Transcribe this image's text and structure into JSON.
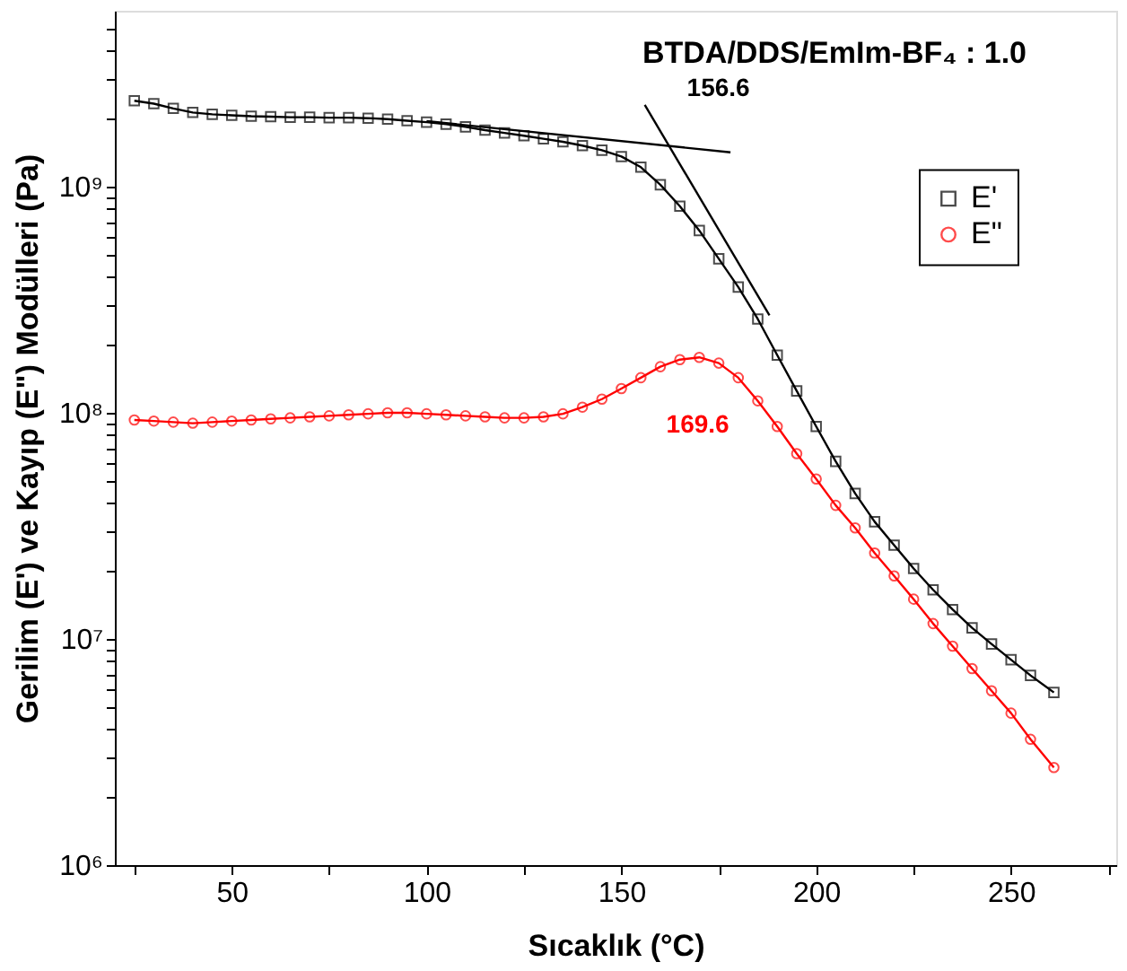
{
  "chart_data": {
    "type": "line",
    "xlabel": "Sıcaklık (°C)",
    "ylabel": "Gerilim (E') ve Kayıp (E\") Modülleri (Pa)",
    "annotations": [
      "BTDA/DDS/EmIm-BF₄ : 1.0",
      {
        "text": "156.6",
        "x": 162,
        "y": 1560000000
      },
      {
        "text": "169.6",
        "x": 169.6,
        "y": 176000000
      }
    ],
    "log": "y",
    "xlim": [
      20,
      277
    ],
    "ylim": [
      1000000,
      6000000000
    ],
    "xticks": [
      {
        "value": 25,
        "label": null
      },
      50,
      {
        "value": 75,
        "label": null
      },
      100,
      {
        "value": 125,
        "label": null
      },
      150,
      {
        "value": 175,
        "label": null
      },
      200,
      {
        "value": 225,
        "label": null
      },
      250,
      {
        "value": 275,
        "label": null
      }
    ],
    "yticks": [
      {
        "value": 1000000,
        "label": "10⁶"
      },
      {
        "value": 2000000,
        "label": null
      },
      {
        "value": 3000000,
        "label": null
      },
      {
        "value": 4000000,
        "label": null
      },
      {
        "value": 5000000,
        "label": null
      },
      {
        "value": 6000000,
        "label": null
      },
      {
        "value": 7000000,
        "label": null
      },
      {
        "value": 8000000,
        "label": null
      },
      {
        "value": 9000000,
        "label": null
      },
      {
        "value": 10000000,
        "label": "10⁷"
      },
      {
        "value": 20000000,
        "label": null
      },
      {
        "value": 30000000,
        "label": null
      },
      {
        "value": 40000000,
        "label": null
      },
      {
        "value": 50000000,
        "label": null
      },
      {
        "value": 60000000,
        "label": null
      },
      {
        "value": 70000000,
        "label": null
      },
      {
        "value": 80000000,
        "label": null
      },
      {
        "value": 90000000,
        "label": null
      },
      {
        "value": 100000000,
        "label": "10⁸"
      },
      {
        "value": 200000000,
        "label": null
      },
      {
        "value": 300000000,
        "label": null
      },
      {
        "value": 400000000,
        "label": null
      },
      {
        "value": 500000000,
        "label": null
      },
      {
        "value": 600000000,
        "label": null
      },
      {
        "value": 700000000,
        "label": null
      },
      {
        "value": 800000000,
        "label": null
      },
      {
        "value": 900000000,
        "label": null
      },
      {
        "value": 1000000000,
        "label": "10⁹"
      },
      {
        "value": 2000000000,
        "label": null
      },
      {
        "value": 3000000000,
        "label": null
      },
      {
        "value": 4000000000,
        "label": null
      },
      {
        "value": 5000000000,
        "label": null
      }
    ],
    "grid": false,
    "legend": "top right",
    "line_style": "solid",
    "series": [
      {
        "name": "E'",
        "color": "#000000",
        "marker": "square",
        "x": [
          25,
          30,
          35,
          40,
          45,
          50,
          55,
          60,
          65,
          70,
          75,
          80,
          85,
          90,
          95,
          100,
          105,
          110,
          115,
          120,
          125,
          130,
          135,
          140,
          145,
          150,
          155,
          160,
          165,
          170,
          175,
          180,
          185,
          190,
          195,
          200,
          205,
          210,
          215,
          220,
          225,
          230,
          235,
          240,
          245,
          250,
          255,
          261
        ],
        "values": [
          2400000000.0,
          2330000000.0,
          2220000000.0,
          2130000000.0,
          2090000000.0,
          2070000000.0,
          2050000000.0,
          2040000000.0,
          2030000000.0,
          2030000000.0,
          2020000000.0,
          2020000000.0,
          2010000000.0,
          1990000000.0,
          1960000000.0,
          1930000000.0,
          1890000000.0,
          1840000000.0,
          1780000000.0,
          1730000000.0,
          1680000000.0,
          1630000000.0,
          1580000000.0,
          1520000000.0,
          1450000000.0,
          1360000000.0,
          1220000000.0,
          1020000000.0,
          820000000.0,
          640000000.0,
          480000000.0,
          360000000.0,
          260000000.0,
          180000000.0,
          125000000.0,
          87000000.0,
          61000000.0,
          44000000.0,
          33000000.0,
          26000000.0,
          20500000.0,
          16500000.0,
          13500000.0,
          11200000.0,
          9500000.0,
          8100000.0,
          6900000.0,
          5800000.0
        ]
      },
      {
        "name": "E\"",
        "color": "#ff0000",
        "marker": "circle",
        "x": [
          25,
          30,
          35,
          40,
          45,
          50,
          55,
          60,
          65,
          70,
          75,
          80,
          85,
          90,
          95,
          100,
          105,
          110,
          115,
          120,
          125,
          130,
          135,
          140,
          145,
          150,
          155,
          160,
          165,
          170,
          175,
          180,
          185,
          190,
          195,
          200,
          205,
          210,
          215,
          220,
          225,
          230,
          235,
          240,
          245,
          250,
          255,
          261
        ],
        "values": [
          93000000.0,
          92000000.0,
          91000000.0,
          90000000.0,
          91000000.0,
          92000000.0,
          93000000.0,
          94000000.0,
          95000000.0,
          96000000.0,
          97000000.0,
          98000000.0,
          99000000.0,
          100000000.0,
          100000000.0,
          99000000.0,
          98000000.0,
          97000000.0,
          96000000.0,
          95000000.0,
          95000000.0,
          96000000.0,
          99000000.0,
          106000000.0,
          115000000.0,
          128000000.0,
          143000000.0,
          160000000.0,
          172000000.0,
          176000000.0,
          166000000.0,
          143000000.0,
          113000000.0,
          87000000.0,
          66000000.0,
          51000000.0,
          39000000.0,
          31000000.0,
          24000000.0,
          19000000.0,
          15000000.0,
          11700000.0,
          9300000.0,
          7400000.0,
          5900000.0,
          4700000.0,
          3600000.0,
          2700000.0
        ]
      },
      {
        "type": "line",
        "color": "#000000",
        "x": [
          100,
          178
        ],
        "values": [
          1950000000.0,
          1420000000.0
        ]
      },
      {
        "type": "line",
        "color": "#000000",
        "x": [
          156,
          188
        ],
        "values": [
          2300000000.0,
          270000000.0
        ]
      }
    ]
  }
}
